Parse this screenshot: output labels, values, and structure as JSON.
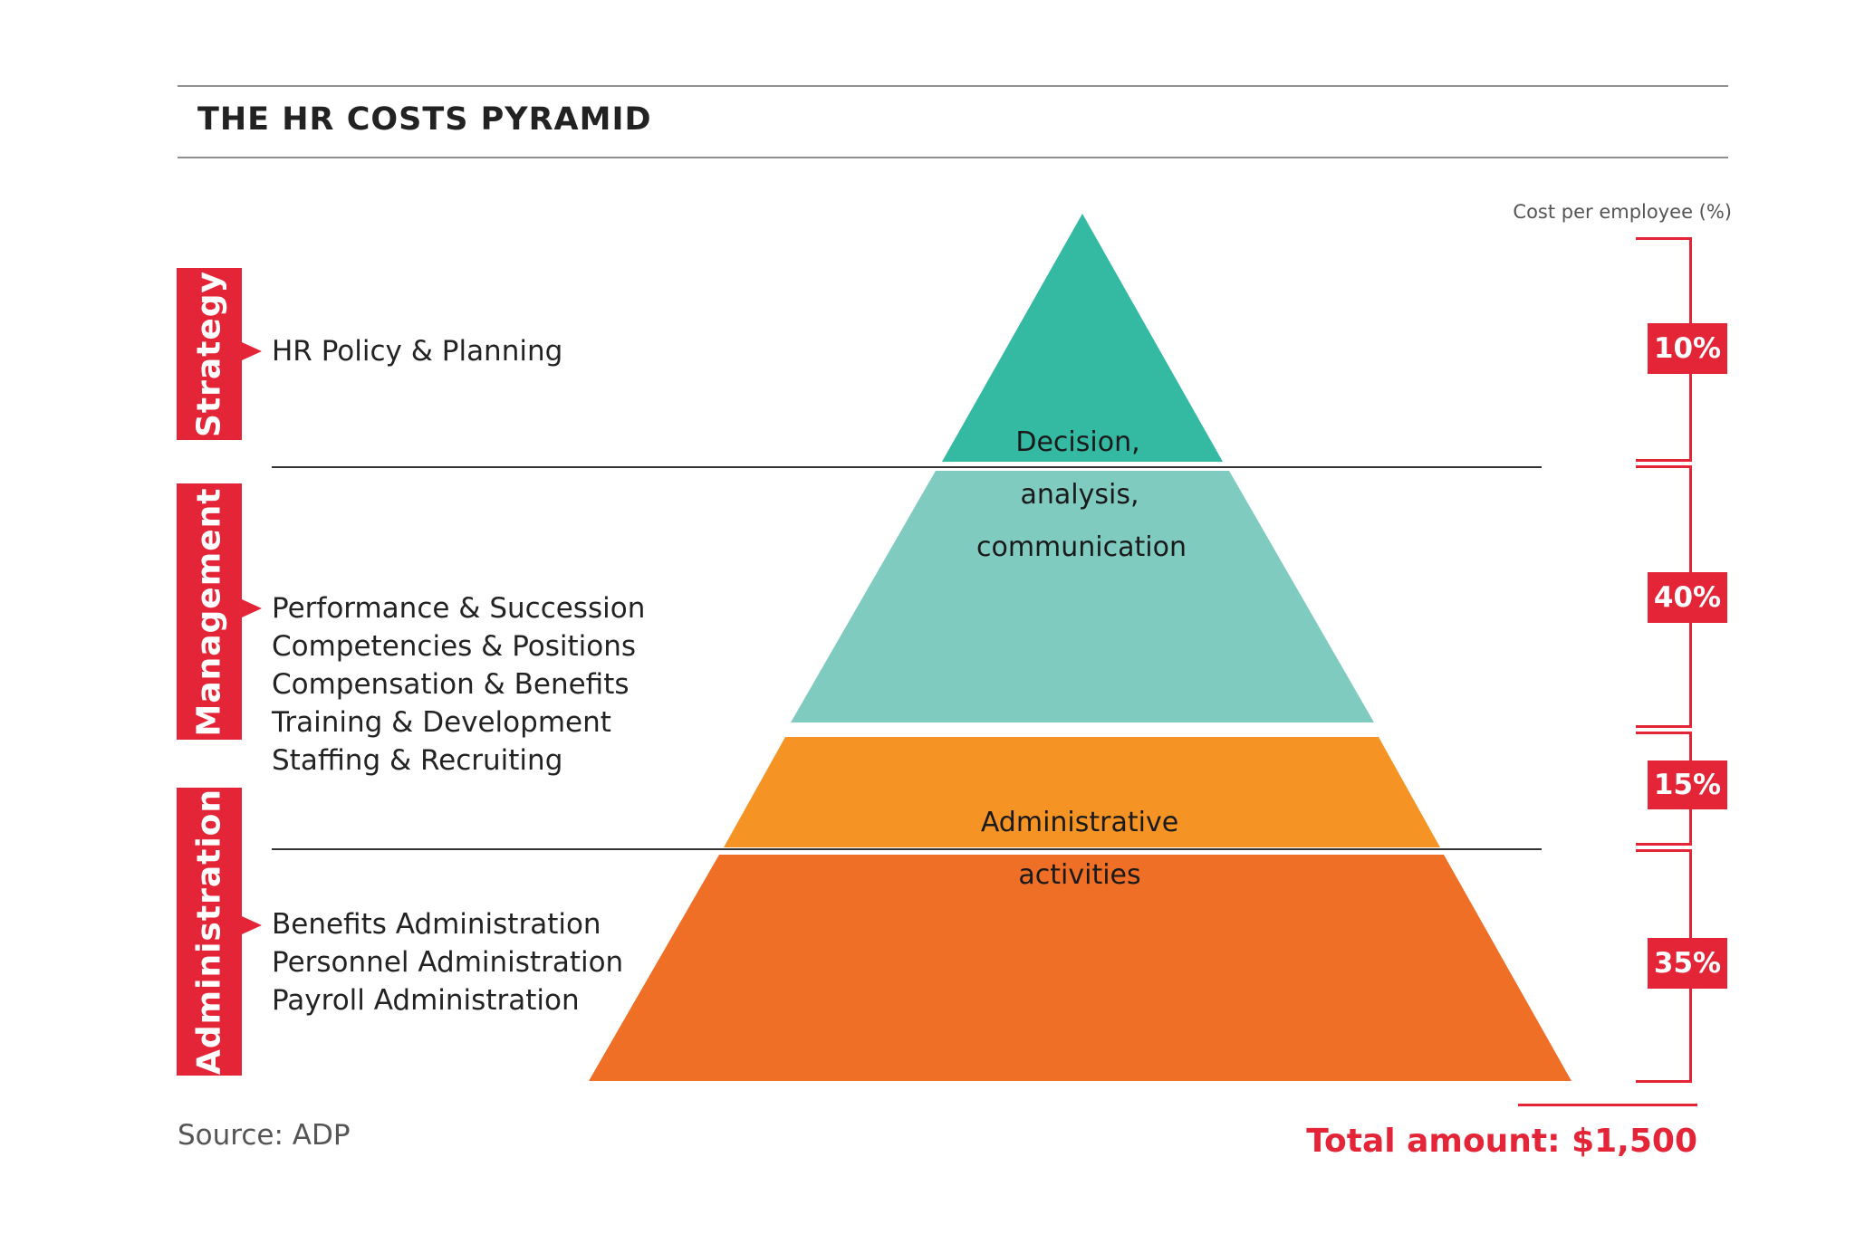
{
  "title": "THE HR COSTS PYRAMID",
  "source": "Source: ADP",
  "cost_header": "Cost per employee (%)",
  "total": "Total amount: $1,500",
  "categories": [
    {
      "label": "Strategy",
      "items": [
        "HR Policy & Planning"
      ]
    },
    {
      "label": "Management",
      "items": [
        "Performance & Succession",
        "Competencies & Positions",
        "Compensation & Benefits",
        "Training & Development",
        "Staffing & Recruiting"
      ]
    },
    {
      "label": "Administration",
      "items": [
        "Benefits Administration",
        "Personnel Administration",
        "Payroll Administration"
      ]
    }
  ],
  "pyramid": {
    "top_label": [
      "Decision,",
      "analysis,",
      "communication"
    ],
    "bottom_label": [
      "Administrative",
      "activities"
    ]
  },
  "chart_data": {
    "type": "pyramid",
    "title": "THE HR COSTS PYRAMID",
    "value_label": "Cost per employee (%)",
    "levels": [
      {
        "value": 10,
        "label": "10%",
        "color": "#34b9a3"
      },
      {
        "value": 40,
        "label": "40%",
        "color": "#7fcbbf"
      },
      {
        "value": 15,
        "label": "15%",
        "color": "#f59424"
      },
      {
        "value": 35,
        "label": "35%",
        "color": "#f06f26"
      }
    ],
    "total": "Total amount: $1,500"
  }
}
